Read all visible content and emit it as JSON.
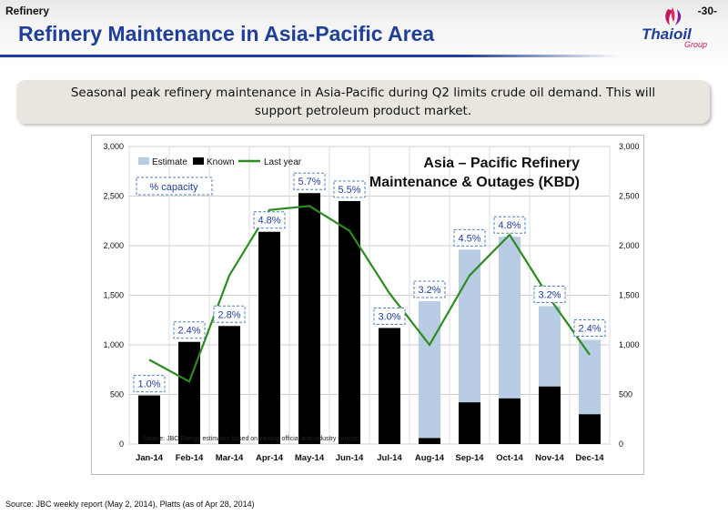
{
  "header": {
    "section": "Refinery",
    "page_number": "-30-",
    "title": "Refinery Maintenance in Asia-Pacific Area",
    "logo_text": "Thaioil",
    "logo_subtext": "Group"
  },
  "callout": {
    "text": "Seasonal peak refinery maintenance in Asia-Pacific during Q2 limits crude oil demand. This will support petroleum product market."
  },
  "colors": {
    "title_blue": "#1f3f9a",
    "estimate": "#b8cce4",
    "known": "#000000",
    "last_year": "#2e8b22",
    "capacity_label": "#1f3f9a"
  },
  "chart_data": {
    "type": "bar",
    "title_line1": "Asia – Pacific Refinery",
    "title_line2": "Maintenance & Outages (KBD)",
    "categories": [
      "Jan-14",
      "Feb-14",
      "Mar-14",
      "Apr-14",
      "May-14",
      "Jun-14",
      "Jul-14",
      "Aug-14",
      "Sep-14",
      "Oct-14",
      "Nov-14",
      "Dec-14"
    ],
    "series": [
      {
        "name": "Estimate",
        "type": "bar",
        "values": [
          0,
          0,
          0,
          0,
          0,
          0,
          0,
          1440,
          1960,
          2090,
          1390,
          1050
        ]
      },
      {
        "name": "Known",
        "type": "bar",
        "values": [
          490,
          1030,
          1190,
          2140,
          2530,
          2450,
          1170,
          60,
          420,
          460,
          580,
          300
        ]
      },
      {
        "name": "Last year",
        "type": "line",
        "values": [
          850,
          630,
          1700,
          2360,
          2400,
          2150,
          1520,
          1000,
          1700,
          2110,
          1470,
          900
        ]
      }
    ],
    "capacity_header": "% capacity",
    "capacity_labels": [
      "1.0%",
      "2.4%",
      "2.8%",
      "4.8%",
      "5.7%",
      "5.5%",
      "3.0%",
      "3.2%",
      "4.5%",
      "4.8%",
      "3.2%",
      "2.4%"
    ],
    "ylim": [
      0,
      3000
    ],
    "yticks": [
      "0",
      "500",
      "1,000",
      "1,500",
      "2,000",
      "2,500",
      "3,000"
    ],
    "ytick_values": [
      0,
      500,
      1000,
      1500,
      2000,
      2500,
      3000
    ],
    "legend_position": "top-left",
    "grid": true,
    "note": "Source: JBC Energy estimates based on various official and industry sources"
  },
  "footer": {
    "source": "Source: JBC weekly report (May 2, 2014), Platts (as of Apr 28, 2014)"
  }
}
